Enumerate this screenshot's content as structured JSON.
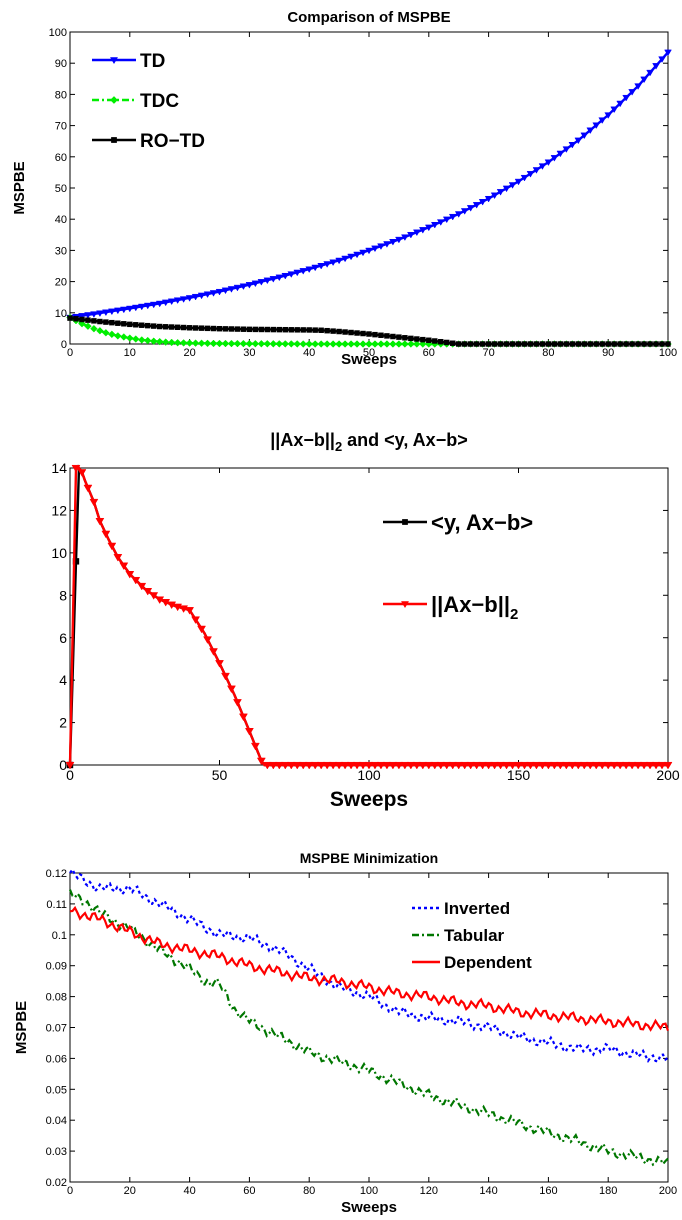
{
  "chart_data": [
    {
      "type": "line",
      "title": "Comparison of MSPBE",
      "title_sub": "",
      "title_tail": "",
      "xlabel": "Sweeps",
      "ylabel": "MSPBE",
      "xlim": [
        0,
        100
      ],
      "ylim": [
        0,
        100
      ],
      "xticks": [
        0,
        10,
        20,
        30,
        40,
        50,
        60,
        70,
        80,
        90,
        100
      ],
      "yticks": [
        0,
        10,
        20,
        30,
        40,
        50,
        60,
        70,
        80,
        90,
        100
      ],
      "xtick_labels": [
        "0",
        "10",
        "20",
        "30",
        "40",
        "50",
        "60",
        "70",
        "80",
        "90",
        "100"
      ],
      "ytick_labels": [
        "0",
        "10",
        "20",
        "30",
        "40",
        "50",
        "60",
        "70",
        "80",
        "90",
        "100"
      ],
      "legend_position": "top-left",
      "series": [
        {
          "name": "TD",
          "name_sub": "",
          "color": "#0000ff",
          "marker": "triangle-down",
          "dash": "solid",
          "x": [
            0,
            5,
            10,
            15,
            20,
            25,
            30,
            35,
            40,
            45,
            50,
            55,
            60,
            65,
            70,
            75,
            80,
            85,
            90,
            95,
            100
          ],
          "y": [
            8.5,
            9.9,
            11.4,
            13.0,
            14.8,
            16.8,
            19.0,
            21.4,
            24.0,
            26.8,
            30.0,
            33.5,
            37.4,
            41.7,
            46.6,
            52.1,
            58.3,
            65.3,
            73.4,
            82.7,
            93.5
          ]
        },
        {
          "name": "TDC",
          "name_sub": "",
          "color": "#00ee00",
          "marker": "diamond",
          "dash": "dashdot",
          "x": [
            0,
            2,
            4,
            6,
            8,
            10,
            12,
            14,
            16,
            18,
            20,
            25,
            30,
            35,
            40,
            50,
            60,
            70,
            80,
            90,
            100
          ],
          "y": [
            8.5,
            6.5,
            4.9,
            3.6,
            2.6,
            1.9,
            1.3,
            0.9,
            0.6,
            0.4,
            0.3,
            0.15,
            0.1,
            0.05,
            0.0,
            0.0,
            0.0,
            0.0,
            0.0,
            0.0,
            0.0
          ]
        },
        {
          "name": "RO−TD",
          "name_sub": "",
          "color": "#000000",
          "marker": "square",
          "dash": "solid",
          "x": [
            0,
            5,
            10,
            15,
            20,
            25,
            30,
            35,
            40,
            42,
            45,
            50,
            55,
            60,
            63,
            65,
            70,
            80,
            90,
            100
          ],
          "y": [
            8.3,
            7.2,
            6.3,
            5.6,
            5.2,
            4.9,
            4.7,
            4.6,
            4.5,
            4.4,
            4.0,
            3.2,
            2.2,
            1.2,
            0.5,
            0.0,
            0.0,
            0.0,
            0.0,
            0.0
          ]
        }
      ]
    },
    {
      "type": "line",
      "title": "||Ax−b||",
      "title_sub": "2",
      "title_tail": " and <y, Ax−b>",
      "xlabel": "Sweeps",
      "ylabel": "",
      "xlim": [
        0,
        200
      ],
      "ylim": [
        0,
        14
      ],
      "xticks": [
        0,
        50,
        100,
        150,
        200
      ],
      "yticks": [
        0,
        2,
        4,
        6,
        8,
        10,
        12,
        14
      ],
      "xtick_labels": [
        "0",
        "50",
        "100",
        "150",
        "200"
      ],
      "ytick_labels": [
        "0",
        "2",
        "4",
        "6",
        "8",
        "10",
        "12",
        "14"
      ],
      "legend_position": "right-upper",
      "series": [
        {
          "name": "<y, Ax−b>",
          "name_sub": "",
          "color": "#000000",
          "marker": "square",
          "dash": "solid",
          "x": [
            0,
            2,
            3,
            4,
            5,
            8,
            10,
            13,
            16,
            20,
            25,
            30,
            35,
            40,
            45,
            50,
            55,
            60,
            64,
            65,
            70,
            100,
            150,
            200
          ],
          "y": [
            0,
            9.6,
            14.0,
            13.8,
            13.4,
            12.4,
            11.5,
            10.6,
            9.8,
            9.0,
            8.3,
            7.8,
            7.5,
            7.3,
            6.2,
            4.8,
            3.3,
            1.6,
            0.2,
            0,
            0,
            0,
            0,
            0
          ]
        },
        {
          "name": "||Ax−b||",
          "name_sub": "2",
          "color": "#ff0000",
          "marker": "triangle-down",
          "dash": "solid",
          "x": [
            0,
            2,
            3,
            4,
            5,
            8,
            10,
            13,
            16,
            20,
            25,
            30,
            35,
            40,
            45,
            50,
            55,
            60,
            64,
            65,
            70,
            100,
            150,
            200
          ],
          "y": [
            0,
            14.0,
            14.0,
            13.8,
            13.4,
            12.4,
            11.5,
            10.6,
            9.8,
            9.0,
            8.3,
            7.8,
            7.5,
            7.3,
            6.2,
            4.8,
            3.3,
            1.6,
            0.2,
            0,
            0,
            0,
            0,
            0
          ]
        }
      ]
    },
    {
      "type": "line",
      "title": "MSPBE Minimization",
      "title_sub": "",
      "title_tail": "",
      "xlabel": "Sweeps",
      "ylabel": "MSPBE",
      "xlim": [
        0,
        200
      ],
      "ylim": [
        0.02,
        0.12
      ],
      "xticks": [
        0,
        20,
        40,
        60,
        80,
        100,
        120,
        140,
        160,
        180,
        200
      ],
      "yticks": [
        0.02,
        0.03,
        0.04,
        0.05,
        0.06,
        0.07,
        0.08,
        0.09,
        0.1,
        0.11,
        0.12
      ],
      "xtick_labels": [
        "0",
        "20",
        "40",
        "60",
        "80",
        "100",
        "120",
        "140",
        "160",
        "180",
        "200"
      ],
      "ytick_labels": [
        "0.02",
        "0.03",
        "0.04",
        "0.05",
        "0.06",
        "0.07",
        "0.08",
        "0.09",
        "0.1",
        "0.11",
        "0.12"
      ],
      "legend_position": "top-right",
      "series": [
        {
          "name": "Inverted",
          "name_sub": "",
          "color": "#0000ff",
          "marker": "none",
          "dash": "dotted",
          "x": [
            0,
            10,
            20,
            30,
            40,
            50,
            60,
            70,
            80,
            90,
            100,
            110,
            120,
            130,
            140,
            150,
            160,
            170,
            180,
            190,
            200
          ],
          "y": [
            0.12,
            0.115,
            0.115,
            0.11,
            0.105,
            0.1,
            0.099,
            0.095,
            0.089,
            0.083,
            0.08,
            0.075,
            0.073,
            0.072,
            0.07,
            0.067,
            0.065,
            0.063,
            0.063,
            0.061,
            0.06
          ]
        },
        {
          "name": "Tabular",
          "name_sub": "",
          "color": "#007700",
          "marker": "none",
          "dash": "dashdot",
          "x": [
            0,
            5,
            10,
            20,
            30,
            40,
            45,
            50,
            55,
            60,
            70,
            80,
            90,
            100,
            110,
            120,
            130,
            140,
            150,
            160,
            170,
            180,
            190,
            200
          ],
          "y": [
            0.113,
            0.111,
            0.107,
            0.102,
            0.095,
            0.089,
            0.085,
            0.084,
            0.076,
            0.072,
            0.067,
            0.062,
            0.059,
            0.056,
            0.052,
            0.048,
            0.045,
            0.042,
            0.039,
            0.036,
            0.033,
            0.03,
            0.028,
            0.026
          ]
        },
        {
          "name": "Dependent",
          "name_sub": "",
          "color": "#ff0000",
          "marker": "none",
          "dash": "solid",
          "x": [
            0,
            10,
            20,
            30,
            40,
            50,
            60,
            70,
            80,
            90,
            100,
            110,
            120,
            130,
            140,
            150,
            160,
            170,
            180,
            190,
            200
          ],
          "y": [
            0.108,
            0.105,
            0.101,
            0.097,
            0.095,
            0.093,
            0.09,
            0.088,
            0.086,
            0.085,
            0.083,
            0.081,
            0.08,
            0.078,
            0.077,
            0.075,
            0.074,
            0.073,
            0.072,
            0.071,
            0.07
          ]
        }
      ]
    }
  ]
}
